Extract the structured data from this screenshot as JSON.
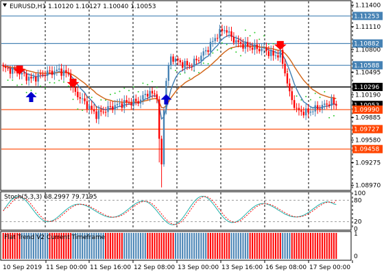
{
  "window": {
    "header_text": "EURUSD,H1  1.10120 1.10127 1.10040 1.10053",
    "symbol": "EURUSD",
    "timeframe": "H1",
    "ohlc": {
      "open": "1.10120",
      "high": "1.10127",
      "low": "1.10040",
      "close": "1.10053"
    }
  },
  "price_axis": {
    "tick_labels": [
      "1.11400",
      "1.11110",
      "1.10800",
      "1.10495",
      "1.10190",
      "1.09885",
      "1.09580",
      "1.09275",
      "1.08970"
    ],
    "levels": [
      {
        "label": "1.11253",
        "color": "#4682b4",
        "kind": "resistance"
      },
      {
        "label": "1.10882",
        "color": "#4682b4",
        "kind": "resistance"
      },
      {
        "label": "1.10588",
        "color": "#4682b4",
        "kind": "resistance"
      },
      {
        "label": "1.10296",
        "color": "#000000",
        "kind": "pivot"
      },
      {
        "label": "1.10053",
        "color": "#ffffff",
        "kind": "current"
      },
      {
        "label": "1.09990",
        "color": "#ff4500",
        "kind": "support"
      },
      {
        "label": "1.09727",
        "color": "#ff4500",
        "kind": "support"
      },
      {
        "label": "1.09458",
        "color": "#ff4500",
        "kind": "support"
      }
    ]
  },
  "stoch": {
    "title": "Stoch(5,3,3) 68.2997 79.7195",
    "axis_labels": [
      "100",
      "80",
      "20",
      "0"
    ]
  },
  "trend": {
    "title": "Flat Trend V2 Current Timeframe",
    "axis_labels": [
      "1",
      "0"
    ]
  },
  "time_axis": {
    "labels": [
      "10 Sep 2019",
      "11 Sep 00:00",
      "11 Sep 16:00",
      "12 Sep 08:00",
      "13 Sep 00:00",
      "13 Sep 16:00",
      "16 Sep 08:00",
      "17 Sep 00:00"
    ]
  },
  "colors": {
    "bull_candle": "#4682b4",
    "bear_candle": "#ff0000",
    "ma_fast": "#4682b4",
    "ma_slow": "#d2691e",
    "psar": "#32cd32",
    "trend_up": "#4682b4",
    "trend_down": "#ff0000",
    "grid": "#000000"
  },
  "chart_data": [
    {
      "type": "candlestick",
      "title": "EURUSD,H1",
      "ylim": [
        1.0891,
        1.1145
      ],
      "n_bars": 144,
      "series": [
        {
          "name": "",
          "values_anchor": [
            [
              0,
              1.1055
            ],
            [
              6,
              1.105
            ],
            [
              12,
              1.104
            ],
            [
              18,
              1.1048
            ],
            [
              24,
              1.1052
            ],
            [
              28,
              1.1046
            ],
            [
              30,
              1.1025
            ],
            [
              36,
              1.1005
            ],
            [
              40,
              1.0992
            ],
            [
              46,
              1.1002
            ],
            [
              52,
              1.1008
            ],
            [
              58,
              1.101
            ],
            [
              62,
              1.1022
            ],
            [
              66,
              1.1018
            ],
            [
              67,
              1.0955
            ],
            [
              68,
              1.0925
            ],
            [
              69,
              1.1
            ],
            [
              70,
              1.104
            ],
            [
              72,
              1.107
            ],
            [
              76,
              1.1062
            ],
            [
              80,
              1.1058
            ],
            [
              84,
              1.1068
            ],
            [
              88,
              1.1082
            ],
            [
              92,
              1.11
            ],
            [
              95,
              1.1108
            ],
            [
              100,
              1.109
            ],
            [
              104,
              1.1085
            ],
            [
              108,
              1.1082
            ],
            [
              112,
              1.108
            ],
            [
              116,
              1.1072
            ],
            [
              119,
              1.1074
            ],
            [
              121,
              1.105
            ],
            [
              123,
              1.102
            ],
            [
              126,
              1.0998
            ],
            [
              130,
              1.0995
            ],
            [
              134,
              1.1
            ],
            [
              138,
              1.1005
            ],
            [
              141,
              1.101
            ],
            [
              143,
              1.1005
            ]
          ]
        }
      ]
    },
    {
      "type": "line",
      "title": "Stoch(5,3,3)",
      "ylim": [
        0,
        100
      ],
      "series": [
        {
          "name": "main",
          "last": 68.2997
        },
        {
          "name": "signal",
          "last": 79.7195
        }
      ]
    },
    {
      "type": "bar",
      "title": "Flat Trend V2 Current Timeframe",
      "ylim": [
        0,
        1
      ],
      "segments": [
        {
          "from": 0,
          "to": 8,
          "value": "down"
        },
        {
          "from": 8,
          "to": 20,
          "value": "up"
        },
        {
          "from": 20,
          "to": 30,
          "value": "down"
        },
        {
          "from": 30,
          "to": 44,
          "value": "up"
        },
        {
          "from": 44,
          "to": 52,
          "value": "down"
        },
        {
          "from": 52,
          "to": 62,
          "value": "up"
        },
        {
          "from": 62,
          "to": 74,
          "value": "down"
        },
        {
          "from": 74,
          "to": 88,
          "value": "up"
        },
        {
          "from": 88,
          "to": 98,
          "value": "down"
        },
        {
          "from": 98,
          "to": 106,
          "value": "up"
        },
        {
          "from": 106,
          "to": 120,
          "value": "down"
        },
        {
          "from": 120,
          "to": 124,
          "value": "up"
        },
        {
          "from": 124,
          "to": 144,
          "value": "down"
        }
      ]
    }
  ]
}
